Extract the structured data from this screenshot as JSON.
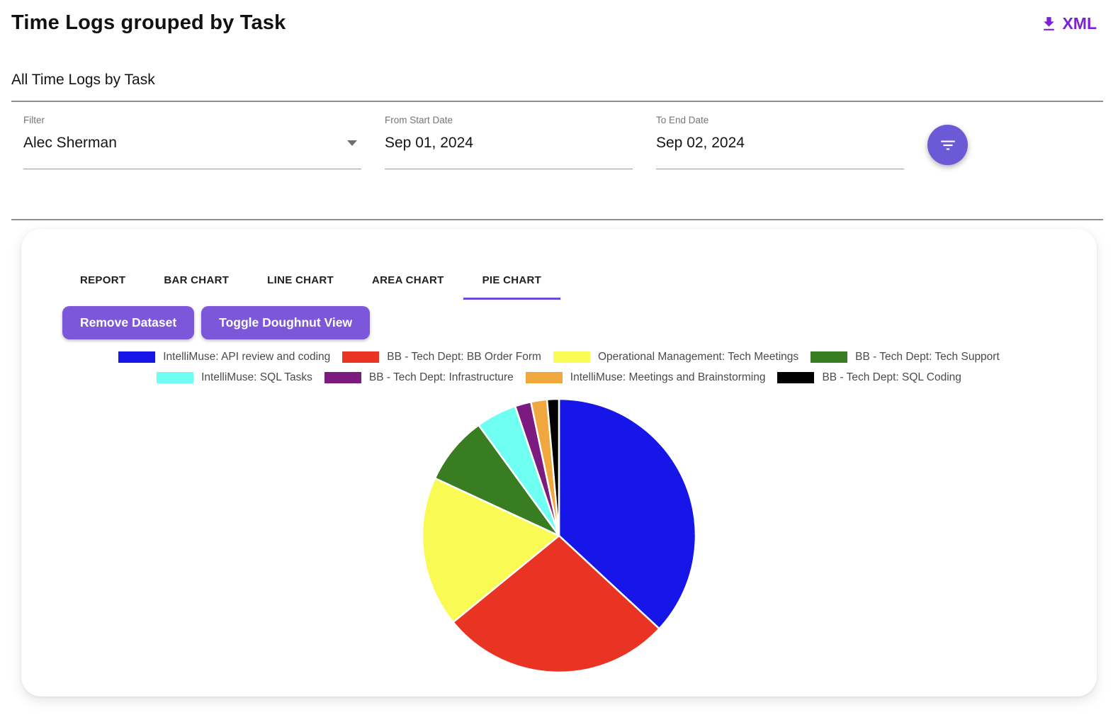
{
  "header": {
    "title": "Time Logs grouped by Task",
    "export_label": "XML"
  },
  "subtitle": "All Time Logs by Task",
  "filters": {
    "filter": {
      "label": "Filter",
      "value": "Alec Sherman"
    },
    "from": {
      "label": "From Start Date",
      "value": "Sep 01, 2024"
    },
    "to": {
      "label": "To End Date",
      "value": "Sep 02, 2024"
    }
  },
  "tabs": [
    {
      "label": "REPORT",
      "active": false
    },
    {
      "label": "BAR CHART",
      "active": false
    },
    {
      "label": "LINE CHART",
      "active": false
    },
    {
      "label": "AREA CHART",
      "active": false
    },
    {
      "label": "PIE CHART",
      "active": true
    }
  ],
  "actions": {
    "remove_dataset": "Remove Dataset",
    "toggle_doughnut": "Toggle Doughnut View"
  },
  "theme": {
    "accent_purple_button": "#7C57DA",
    "accent_purple_fab": "#6C59D6",
    "accent_purple_tab_underline": "#6C4BDB",
    "accent_purple_link": "#7E22D4",
    "divider_gray": "#8f8f8f"
  },
  "chart_data": {
    "type": "pie",
    "title": "All Time Logs by Task",
    "legend_position": "top",
    "start_angle_deg": 0,
    "direction": "clockwise",
    "series_labels": [
      "IntelliMuse: API review and coding",
      "BB - Tech Dept: BB Order Form",
      "Operational Management: Tech Meetings",
      "BB - Tech Dept: Tech Support",
      "IntelliMuse: SQL Tasks",
      "BB - Tech Dept: Infrastructure",
      "IntelliMuse: Meetings and Brainstorming",
      "BB - Tech Dept: SQL Coding"
    ],
    "values": [
      36.9,
      27.2,
      17.8,
      8.1,
      4.8,
      1.9,
      1.9,
      1.4
    ],
    "values_unit": "percent of total (estimated from slice angles; no numeric labels shown)",
    "colors": [
      "#1616E8",
      "#EA3423",
      "#FAFA55",
      "#397D22",
      "#6FFFF2",
      "#7B1B80",
      "#F0A73E",
      "#000000"
    ]
  }
}
